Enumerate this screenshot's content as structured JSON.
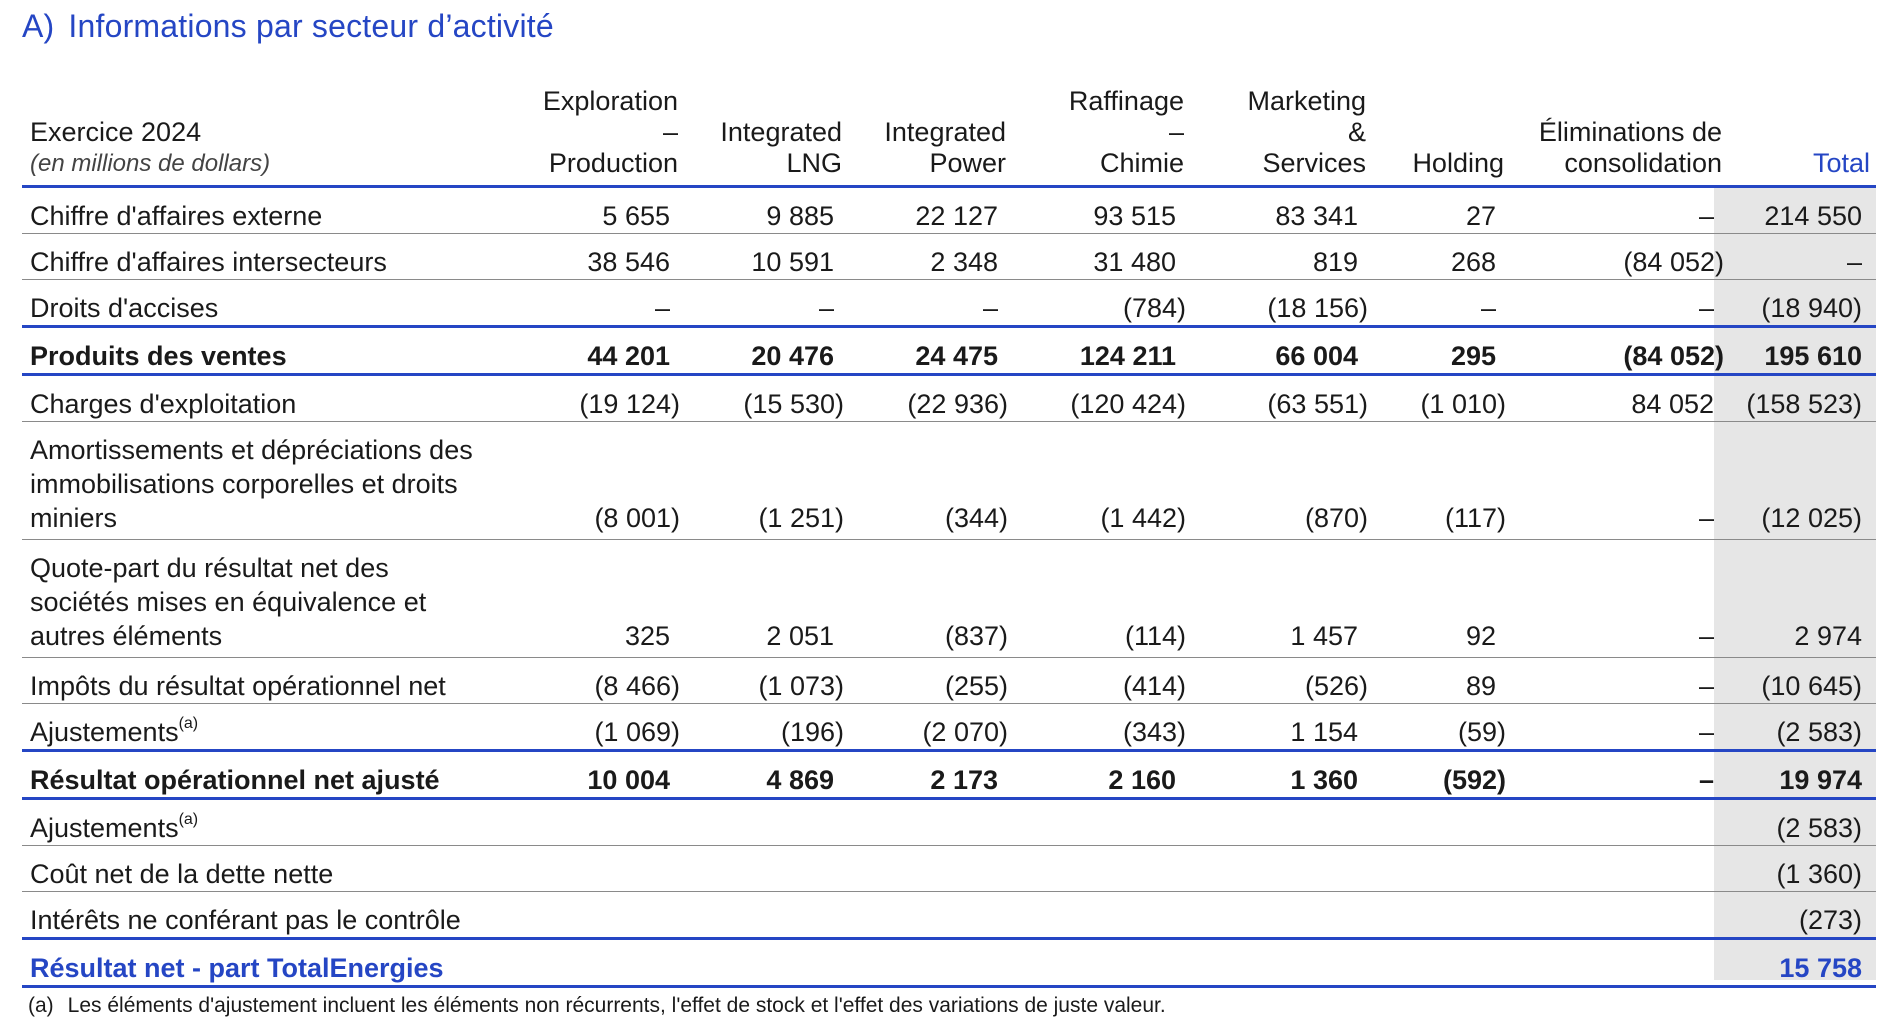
{
  "section": {
    "letter": "A)",
    "title": "Informations par secteur d’activité"
  },
  "header": {
    "year": "Exercice 2024",
    "unit": "(en millions de dollars)",
    "columns": [
      {
        "line1": "Exploration",
        "line2": "–",
        "line3": "Production"
      },
      {
        "line1": "",
        "line2": "Integrated",
        "line3": "LNG"
      },
      {
        "line1": "",
        "line2": "Integrated",
        "line3": "Power"
      },
      {
        "line1": "Raffinage",
        "line2": "–",
        "line3": "Chimie"
      },
      {
        "line1": "Marketing",
        "line2": "&",
        "line3": "Services"
      },
      {
        "line1": "",
        "line2": "",
        "line3": "Holding"
      },
      {
        "line1": "",
        "line2": "Éliminations de",
        "line3": "consolidation"
      },
      {
        "line1": "",
        "line2": "",
        "line3": "Total"
      }
    ]
  },
  "rows": [
    {
      "label": "Chiffre d'affaires externe",
      "values": [
        "5 655",
        "9 885",
        "22 127",
        "93 515",
        "83 341",
        "27",
        "–",
        "214 550"
      ]
    },
    {
      "label": "Chiffre d'affaires intersecteurs",
      "values": [
        "38 546",
        "10 591",
        "2 348",
        "31 480",
        "819",
        "268",
        "(84 052)",
        "–"
      ]
    },
    {
      "label": "Droits d'accises",
      "values": [
        "–",
        "–",
        "–",
        "(784)",
        "(18 156)",
        "–",
        "–",
        "(18 940)"
      ]
    },
    {
      "label": "Produits des ventes",
      "values": [
        "44 201",
        "20 476",
        "24 475",
        "124 211",
        "66 004",
        "295",
        "(84 052)",
        "195 610"
      ]
    },
    {
      "label": "Charges d'exploitation",
      "values": [
        "(19 124)",
        "(15 530)",
        "(22 936)",
        "(120 424)",
        "(63 551)",
        "(1 010)",
        "84 052",
        "(158 523)"
      ]
    },
    {
      "label": "Amortissements et dépréciations des immobilisations corporelles et droits miniers",
      "values": [
        "(8 001)",
        "(1 251)",
        "(344)",
        "(1 442)",
        "(870)",
        "(117)",
        "–",
        "(12 025)"
      ]
    },
    {
      "label": "Quote-part du résultat net des sociétés mises en équivalence et autres éléments",
      "values": [
        "325",
        "2 051",
        "(837)",
        "(114)",
        "1 457",
        "92",
        "–",
        "2 974"
      ]
    },
    {
      "label": "Impôts du résultat opérationnel net",
      "values": [
        "(8 466)",
        "(1 073)",
        "(255)",
        "(414)",
        "(526)",
        "89",
        "–",
        "(10 645)"
      ]
    },
    {
      "label": "Ajustements",
      "sup": "(a)",
      "values": [
        "(1 069)",
        "(196)",
        "(2 070)",
        "(343)",
        "1 154",
        "(59)",
        "–",
        "(2 583)"
      ]
    },
    {
      "label": "Résultat opérationnel net ajusté",
      "values": [
        "10 004",
        "4 869",
        "2 173",
        "2 160",
        "1 360",
        "(592)",
        "–",
        "19 974"
      ]
    },
    {
      "label": "Ajustements",
      "sup": "(a)",
      "total": "(2 583)"
    },
    {
      "label": "Coût net de la dette nette",
      "total": "(1 360)"
    },
    {
      "label": "Intérêts ne conférant pas le contrôle",
      "total": "(273)"
    },
    {
      "label": "Résultat net - part TotalEnergies",
      "total": "15 758"
    }
  ],
  "footnote": {
    "mark": "(a)",
    "text": "Les éléments d'ajustement incluent les éléments non récurrents, l'effet de stock et l'effet des variations de juste valeur."
  },
  "colors": {
    "accent": "#2546c4",
    "total_bg": "#e6e6e6",
    "rule": "#8a8a8a"
  }
}
